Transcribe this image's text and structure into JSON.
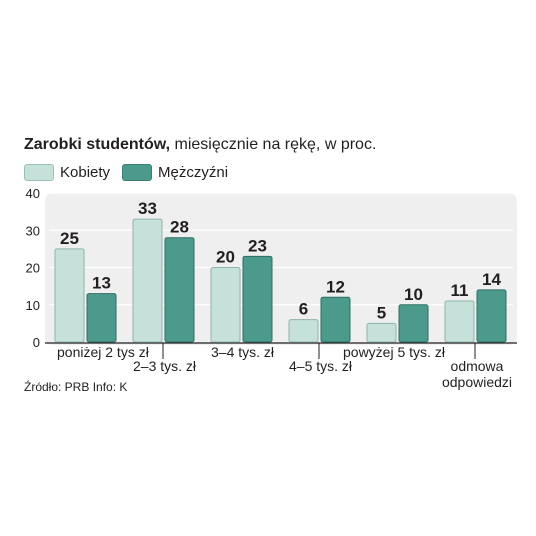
{
  "title_bold": "Zarobki studentów,",
  "title_rest": " miesięcznie na rękę, w proc.",
  "source": "Źródło: PRB  Info: K",
  "colors": {
    "kobiety": "#c6e0da",
    "mezczyzni": "#4c9a8b",
    "panel": "#efefef"
  },
  "chart_data": {
    "type": "bar",
    "categories": [
      [
        "poniżej 2 tys zł"
      ],
      [
        "2–3 tys. zł"
      ],
      [
        "3–4 tys. zł"
      ],
      [
        "4–5 tys. zł"
      ],
      [
        "powyżej 5 tys. zł"
      ],
      [
        "odmowa",
        "odpowiedzi"
      ]
    ],
    "series": [
      {
        "name": "Kobiety",
        "values": [
          25,
          33,
          20,
          6,
          5,
          11
        ]
      },
      {
        "name": "Mężczyźni",
        "values": [
          13,
          28,
          23,
          12,
          10,
          14
        ]
      }
    ],
    "ylim": [
      0,
      40
    ],
    "yticks": [
      0,
      10,
      20,
      30,
      40
    ],
    "grid": true,
    "legend": "top-left"
  }
}
